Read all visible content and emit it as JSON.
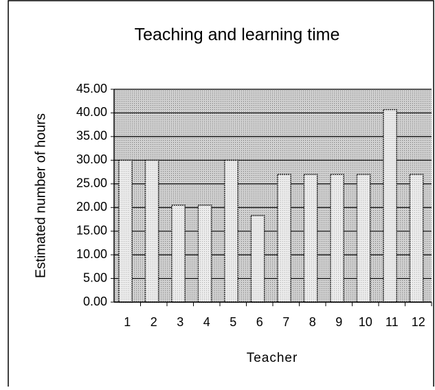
{
  "chart_data": {
    "type": "bar",
    "title": "Teaching and learning time",
    "x_label": "Teacher",
    "y_label": "Estimated number of hours",
    "categories": [
      "1",
      "2",
      "3",
      "4",
      "5",
      "6",
      "7",
      "8",
      "9",
      "10",
      "11",
      "12"
    ],
    "values": [
      30,
      30,
      20.5,
      20.5,
      30,
      18.3,
      27,
      27,
      27,
      27,
      40.7,
      27
    ],
    "color": "#e4e4e4",
    "ylim": [
      0,
      45
    ],
    "yticks": [
      {
        "value": 0,
        "label": "0.00"
      },
      {
        "value": 5,
        "label": "5.00"
      },
      {
        "value": 10,
        "label": "10.00"
      },
      {
        "value": 15,
        "label": "15.00"
      },
      {
        "value": 20,
        "label": "20.00"
      },
      {
        "value": 25,
        "label": "25.00"
      },
      {
        "value": 30,
        "label": "30.00"
      },
      {
        "value": 35,
        "label": "35.00"
      },
      {
        "value": 40,
        "label": "40.00"
      },
      {
        "value": 45,
        "label": "45.00"
      }
    ],
    "grid": true
  }
}
